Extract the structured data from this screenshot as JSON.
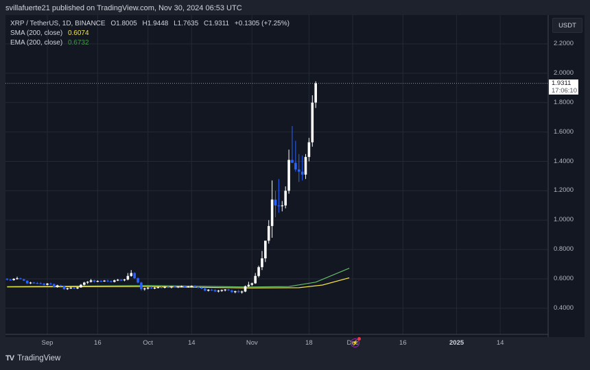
{
  "header": {
    "publisher_line": "svillafuerte21 published on TradingView.com, Nov 30, 2024 06:53 UTC"
  },
  "legend": {
    "symbol": "XRP / TetherUS, 1D, BINANCE",
    "open": "O1.8005",
    "high": "H1.9448",
    "low": "L1.7635",
    "close": "C1.9311",
    "change": "+0.1305 (+7.25%)",
    "sma_label": "SMA (200, close)",
    "sma_value": "0.6074",
    "ema_label": "EMA (200, close)",
    "ema_value": "0.6732"
  },
  "price_axis": {
    "currency": "USDT",
    "last_price": "1.9311",
    "countdown": "17:06:10"
  },
  "footer": {
    "brand": "TradingView",
    "logo_mark": "TV"
  },
  "colors": {
    "background": "#131722",
    "frame": "#1e222d",
    "grid": "#242936",
    "up_candle": "#ffffff",
    "down_candle": "#2962ff",
    "sma": "#f5e642",
    "ema": "#66bb6a",
    "text": "#d1d4dc"
  },
  "chart_data": {
    "type": "candlestick",
    "title": "XRP / TetherUS, 1D, BINANCE",
    "ylabel": "USDT",
    "ylim": [
      0.3,
      2.3
    ],
    "y_ticks": [
      0.4,
      0.6,
      0.8,
      1.0,
      1.2,
      1.4,
      1.6,
      1.8,
      2.0,
      2.2
    ],
    "y_tick_labels": [
      "0.4000",
      "0.6000",
      "0.8000",
      "1.0000",
      "1.2000",
      "1.4000",
      "1.6000",
      "1.8000",
      "2.0000",
      "2.2000"
    ],
    "x_ticks": [
      {
        "label": "Sep",
        "day": 0,
        "bold": false
      },
      {
        "label": "16",
        "day": 15,
        "bold": false
      },
      {
        "label": "Oct",
        "day": 30,
        "bold": false
      },
      {
        "label": "14",
        "day": 43,
        "bold": false
      },
      {
        "label": "Nov",
        "day": 61,
        "bold": false
      },
      {
        "label": "18",
        "day": 78,
        "bold": false
      },
      {
        "label": "Dec",
        "day": 91,
        "bold": false
      },
      {
        "label": "16",
        "day": 106,
        "bold": false
      },
      {
        "label": "2025",
        "day": 122,
        "bold": true
      },
      {
        "label": "14",
        "day": 135,
        "bold": false
      }
    ],
    "grid": true,
    "start_day": -12,
    "candles_ohlc": [
      [
        0.6,
        0.605,
        0.59,
        0.595
      ],
      [
        0.595,
        0.6,
        0.588,
        0.592
      ],
      [
        0.592,
        0.605,
        0.588,
        0.6
      ],
      [
        0.6,
        0.615,
        0.596,
        0.604
      ],
      [
        0.604,
        0.608,
        0.596,
        0.598
      ],
      [
        0.598,
        0.6,
        0.585,
        0.588
      ],
      [
        0.588,
        0.59,
        0.565,
        0.57
      ],
      [
        0.57,
        0.58,
        0.565,
        0.575
      ],
      [
        0.575,
        0.58,
        0.568,
        0.572
      ],
      [
        0.572,
        0.578,
        0.565,
        0.57
      ],
      [
        0.57,
        0.578,
        0.565,
        0.568
      ],
      [
        0.568,
        0.572,
        0.555,
        0.56
      ],
      [
        0.56,
        0.572,
        0.556,
        0.568
      ],
      [
        0.568,
        0.575,
        0.56,
        0.565
      ],
      [
        0.565,
        0.568,
        0.54,
        0.545
      ],
      [
        0.545,
        0.56,
        0.54,
        0.556
      ],
      [
        0.556,
        0.56,
        0.548,
        0.552
      ],
      [
        0.552,
        0.555,
        0.525,
        0.53
      ],
      [
        0.53,
        0.54,
        0.525,
        0.536
      ],
      [
        0.536,
        0.545,
        0.532,
        0.54
      ],
      [
        0.54,
        0.545,
        0.53,
        0.535
      ],
      [
        0.535,
        0.545,
        0.53,
        0.542
      ],
      [
        0.542,
        0.565,
        0.54,
        0.56
      ],
      [
        0.56,
        0.58,
        0.555,
        0.575
      ],
      [
        0.575,
        0.585,
        0.565,
        0.58
      ],
      [
        0.58,
        0.6,
        0.575,
        0.59
      ],
      [
        0.59,
        0.595,
        0.575,
        0.582
      ],
      [
        0.582,
        0.59,
        0.578,
        0.586
      ],
      [
        0.586,
        0.592,
        0.578,
        0.584
      ],
      [
        0.584,
        0.592,
        0.58,
        0.588
      ],
      [
        0.588,
        0.596,
        0.58,
        0.585
      ],
      [
        0.585,
        0.59,
        0.575,
        0.58
      ],
      [
        0.58,
        0.595,
        0.576,
        0.59
      ],
      [
        0.59,
        0.6,
        0.585,
        0.594
      ],
      [
        0.594,
        0.598,
        0.585,
        0.59
      ],
      [
        0.59,
        0.6,
        0.584,
        0.596
      ],
      [
        0.596,
        0.64,
        0.59,
        0.62
      ],
      [
        0.62,
        0.66,
        0.615,
        0.64
      ],
      [
        0.64,
        0.645,
        0.6,
        0.605
      ],
      [
        0.605,
        0.61,
        0.57,
        0.575
      ],
      [
        0.575,
        0.58,
        0.52,
        0.53
      ],
      [
        0.53,
        0.54,
        0.52,
        0.535
      ],
      [
        0.535,
        0.545,
        0.528,
        0.54
      ],
      [
        0.54,
        0.548,
        0.532,
        0.536
      ],
      [
        0.536,
        0.545,
        0.53,
        0.54
      ],
      [
        0.54,
        0.548,
        0.535,
        0.544
      ],
      [
        0.544,
        0.55,
        0.536,
        0.54
      ],
      [
        0.54,
        0.55,
        0.535,
        0.546
      ],
      [
        0.546,
        0.552,
        0.538,
        0.542
      ],
      [
        0.542,
        0.55,
        0.536,
        0.548
      ],
      [
        0.548,
        0.555,
        0.54,
        0.545
      ],
      [
        0.545,
        0.55,
        0.538,
        0.548
      ],
      [
        0.548,
        0.555,
        0.542,
        0.55
      ],
      [
        0.55,
        0.556,
        0.54,
        0.544
      ],
      [
        0.544,
        0.552,
        0.54,
        0.548
      ],
      [
        0.548,
        0.556,
        0.542,
        0.552
      ],
      [
        0.552,
        0.558,
        0.54,
        0.545
      ],
      [
        0.545,
        0.552,
        0.535,
        0.54
      ],
      [
        0.54,
        0.546,
        0.53,
        0.535
      ],
      [
        0.535,
        0.542,
        0.515,
        0.52
      ],
      [
        0.52,
        0.53,
        0.514,
        0.526
      ],
      [
        0.526,
        0.532,
        0.518,
        0.524
      ],
      [
        0.524,
        0.53,
        0.51,
        0.515
      ],
      [
        0.515,
        0.525,
        0.508,
        0.52
      ],
      [
        0.52,
        0.528,
        0.512,
        0.524
      ],
      [
        0.524,
        0.53,
        0.515,
        0.528
      ],
      [
        0.528,
        0.532,
        0.518,
        0.522
      ],
      [
        0.522,
        0.528,
        0.505,
        0.51
      ],
      [
        0.51,
        0.52,
        0.502,
        0.516
      ],
      [
        0.516,
        0.525,
        0.505,
        0.51
      ],
      [
        0.51,
        0.52,
        0.5,
        0.514
      ],
      [
        0.514,
        0.555,
        0.51,
        0.55
      ],
      [
        0.55,
        0.58,
        0.545,
        0.56
      ],
      [
        0.56,
        0.575,
        0.552,
        0.57
      ],
      [
        0.57,
        0.64,
        0.566,
        0.62
      ],
      [
        0.62,
        0.69,
        0.61,
        0.68
      ],
      [
        0.68,
        0.79,
        0.66,
        0.74
      ],
      [
        0.74,
        0.84,
        0.715,
        0.86
      ],
      [
        0.86,
        1.0,
        0.84,
        0.96
      ],
      [
        0.96,
        1.27,
        0.88,
        1.14
      ],
      [
        1.14,
        1.2,
        1.02,
        1.1
      ],
      [
        1.1,
        1.28,
        1.05,
        1.095
      ],
      [
        1.095,
        1.13,
        1.06,
        1.1
      ],
      [
        1.1,
        1.23,
        1.08,
        1.2
      ],
      [
        1.2,
        1.48,
        1.18,
        1.41
      ],
      [
        1.41,
        1.64,
        1.4,
        1.39
      ],
      [
        1.39,
        1.54,
        1.33,
        1.345
      ],
      [
        1.345,
        1.45,
        1.26,
        1.33
      ],
      [
        1.33,
        1.44,
        1.27,
        1.31
      ],
      [
        1.31,
        1.45,
        1.28,
        1.43
      ],
      [
        1.43,
        1.56,
        1.4,
        1.53
      ],
      [
        1.53,
        1.85,
        1.5,
        1.8
      ],
      [
        1.8005,
        1.9448,
        1.7635,
        1.9311
      ]
    ],
    "sma_200": {
      "name": "SMA (200, close)",
      "last": 0.6074,
      "approx_path": [
        [
          -12,
          0.545
        ],
        [
          30,
          0.548
        ],
        [
          60,
          0.538
        ],
        [
          75,
          0.54
        ],
        [
          82,
          0.558
        ],
        [
          90,
          0.607
        ]
      ]
    },
    "ema_200": {
      "name": "EMA (200, close)",
      "last": 0.6732,
      "approx_path": [
        [
          -12,
          0.548
        ],
        [
          30,
          0.555
        ],
        [
          60,
          0.545
        ],
        [
          72,
          0.548
        ],
        [
          80,
          0.578
        ],
        [
          90,
          0.673
        ]
      ]
    },
    "last_price": 1.9311
  }
}
